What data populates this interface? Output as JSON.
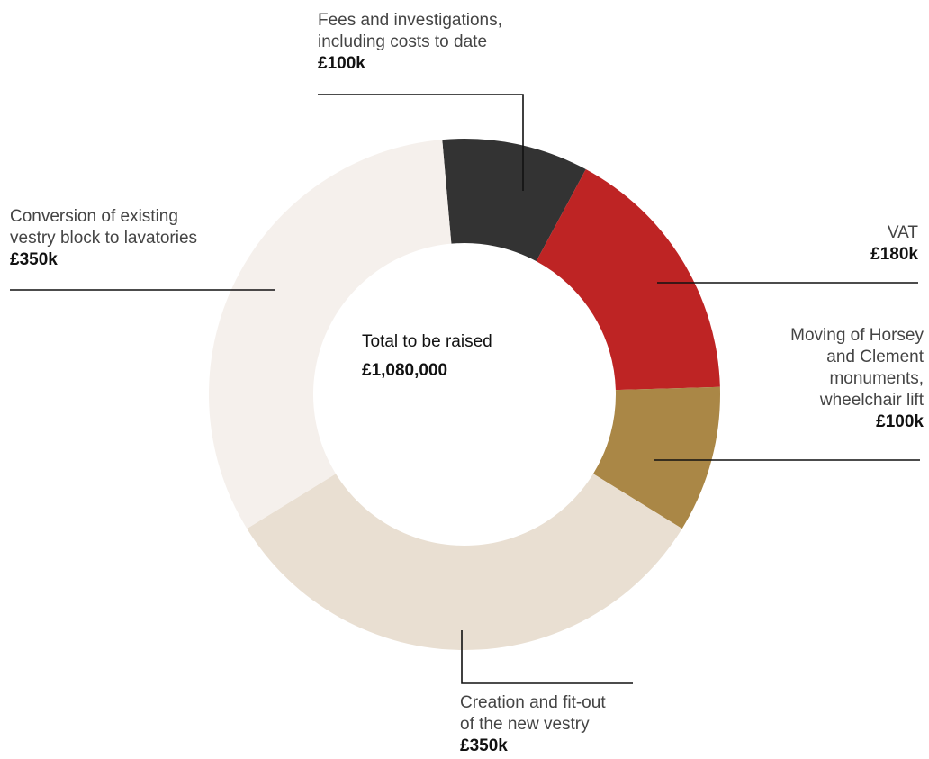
{
  "chart_data": {
    "type": "pie",
    "variant": "donut",
    "center_label": {
      "title": "Total to be raised",
      "value": "£1,080,000"
    },
    "units": "£k",
    "slices": [
      {
        "name_lines": [
          "Fees and investigations,",
          "including costs to date"
        ],
        "value_label": "£100k",
        "value": 100,
        "color": "#333333"
      },
      {
        "name_lines": [
          "VAT"
        ],
        "value_label": "£180k",
        "value": 180,
        "color": "#be2424"
      },
      {
        "name_lines": [
          "Moving of Horsey",
          "and Clement",
          "monuments,",
          "wheelchair lift"
        ],
        "value_label": "£100k",
        "value": 100,
        "color": "#aa8746"
      },
      {
        "name_lines": [
          "Creation and fit-out",
          "of the new vestry"
        ],
        "value_label": "£350k",
        "value": 350,
        "color": "#e9dfd2"
      },
      {
        "name_lines": [
          "Conversion of existing",
          "vestry block to lavatories"
        ],
        "value_label": "£350k",
        "value": 350,
        "color": "#f5f0ec"
      }
    ]
  }
}
